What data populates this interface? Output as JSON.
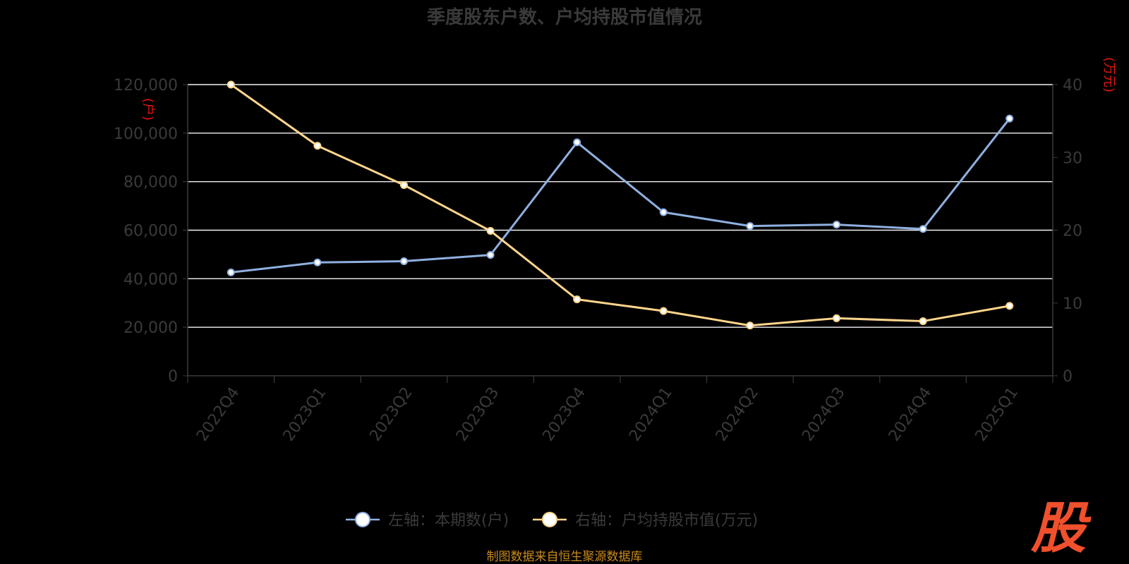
{
  "chart_data": {
    "type": "line",
    "title": "季度股东户数、户均持股市值情况",
    "categories": [
      "2022Q4",
      "2023Q1",
      "2023Q2",
      "2023Q3",
      "2023Q4",
      "2024Q1",
      "2024Q2",
      "2024Q3",
      "2024Q4",
      "2025Q1"
    ],
    "left_axis": {
      "unit": "(户)",
      "min": 0,
      "max": 120000,
      "tick_labels": [
        "0",
        "20,000",
        "40,000",
        "60,000",
        "80,000",
        "100,000",
        "120,000"
      ]
    },
    "right_axis": {
      "unit": "(万元)",
      "min": 0,
      "max": 40,
      "tick_labels": [
        "0",
        "10",
        "20",
        "30",
        "40"
      ]
    },
    "series": [
      {
        "name": "左轴：本期数(户)",
        "axis": "left",
        "color": "#8fb0e0",
        "values": [
          42600,
          46700,
          47200,
          49800,
          96200,
          67400,
          61700,
          62300,
          60500,
          106000
        ]
      },
      {
        "name": "右轴：户均持股市值(万元)",
        "axis": "right",
        "color": "#ffd58c",
        "values": [
          40.0,
          31.6,
          26.2,
          19.9,
          10.5,
          8.9,
          6.9,
          7.9,
          7.5,
          9.6
        ]
      }
    ],
    "grid": true,
    "legend_position": "bottom"
  },
  "footer": {
    "source": "制图数据来自恒生聚源数据库",
    "logo_text": "股"
  }
}
